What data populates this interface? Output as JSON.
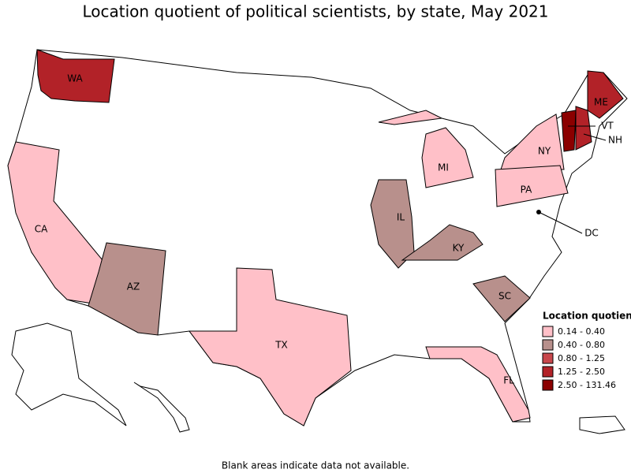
{
  "title": "Location quotient of political scientists, by state, May 2021",
  "legend": {
    "title": "Location quotient",
    "items": [
      {
        "label": "0.14 - 0.40",
        "color": "#ffc0c8"
      },
      {
        "label": "0.40 - 0.80",
        "color": "#b8908c"
      },
      {
        "label": "0.80 - 1.25",
        "color": "#c8474c"
      },
      {
        "label": "1.25 - 2.50",
        "color": "#b22228"
      },
      {
        "label": "2.50 - 131.46",
        "color": "#8b0000"
      }
    ]
  },
  "states": [
    {
      "label": "WA",
      "color": "#b22228"
    },
    {
      "label": "ME",
      "color": "#b22228"
    },
    {
      "label": "VT",
      "color": "#8b0000"
    },
    {
      "label": "NH",
      "color": "#b22228"
    },
    {
      "label": "NY",
      "color": "#ffc0c8"
    },
    {
      "label": "MI",
      "color": "#ffc0c8"
    },
    {
      "label": "PA",
      "color": "#ffc0c8"
    },
    {
      "label": "IL",
      "color": "#b8908c"
    },
    {
      "label": "KY",
      "color": "#b8908c"
    },
    {
      "label": "CA",
      "color": "#ffc0c8"
    },
    {
      "label": "AZ",
      "color": "#b8908c"
    },
    {
      "label": "TX",
      "color": "#ffc0c8"
    },
    {
      "label": "SC",
      "color": "#b8908c"
    },
    {
      "label": "FL",
      "color": "#ffc0c8"
    },
    {
      "label": "DC",
      "color": "#000000"
    }
  ],
  "footnote": "Blank areas indicate data not available."
}
